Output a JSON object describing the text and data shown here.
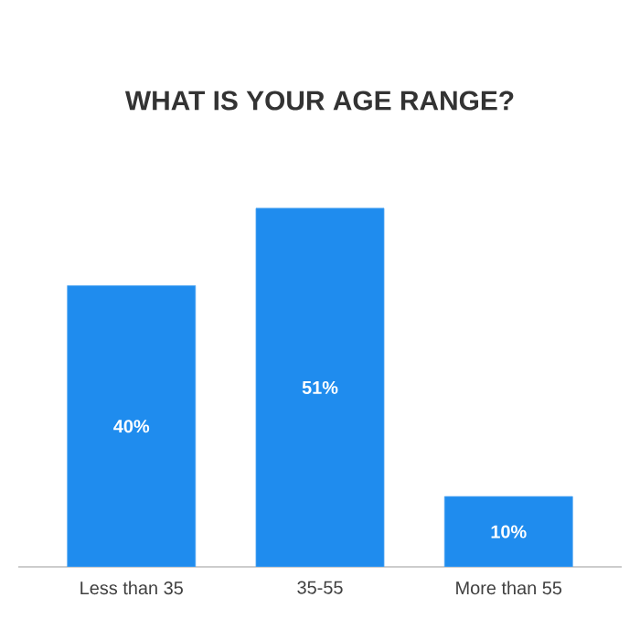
{
  "chart_data": {
    "type": "bar",
    "title": "WHAT IS YOUR AGE RANGE?",
    "categories": [
      "Less than 35",
      "35-55",
      "More than 55"
    ],
    "values": [
      40,
      51,
      10
    ],
    "color": "#1f8cee",
    "value_labels": [
      "40%",
      "51%",
      "10%"
    ],
    "tick_labels": "x"
  }
}
